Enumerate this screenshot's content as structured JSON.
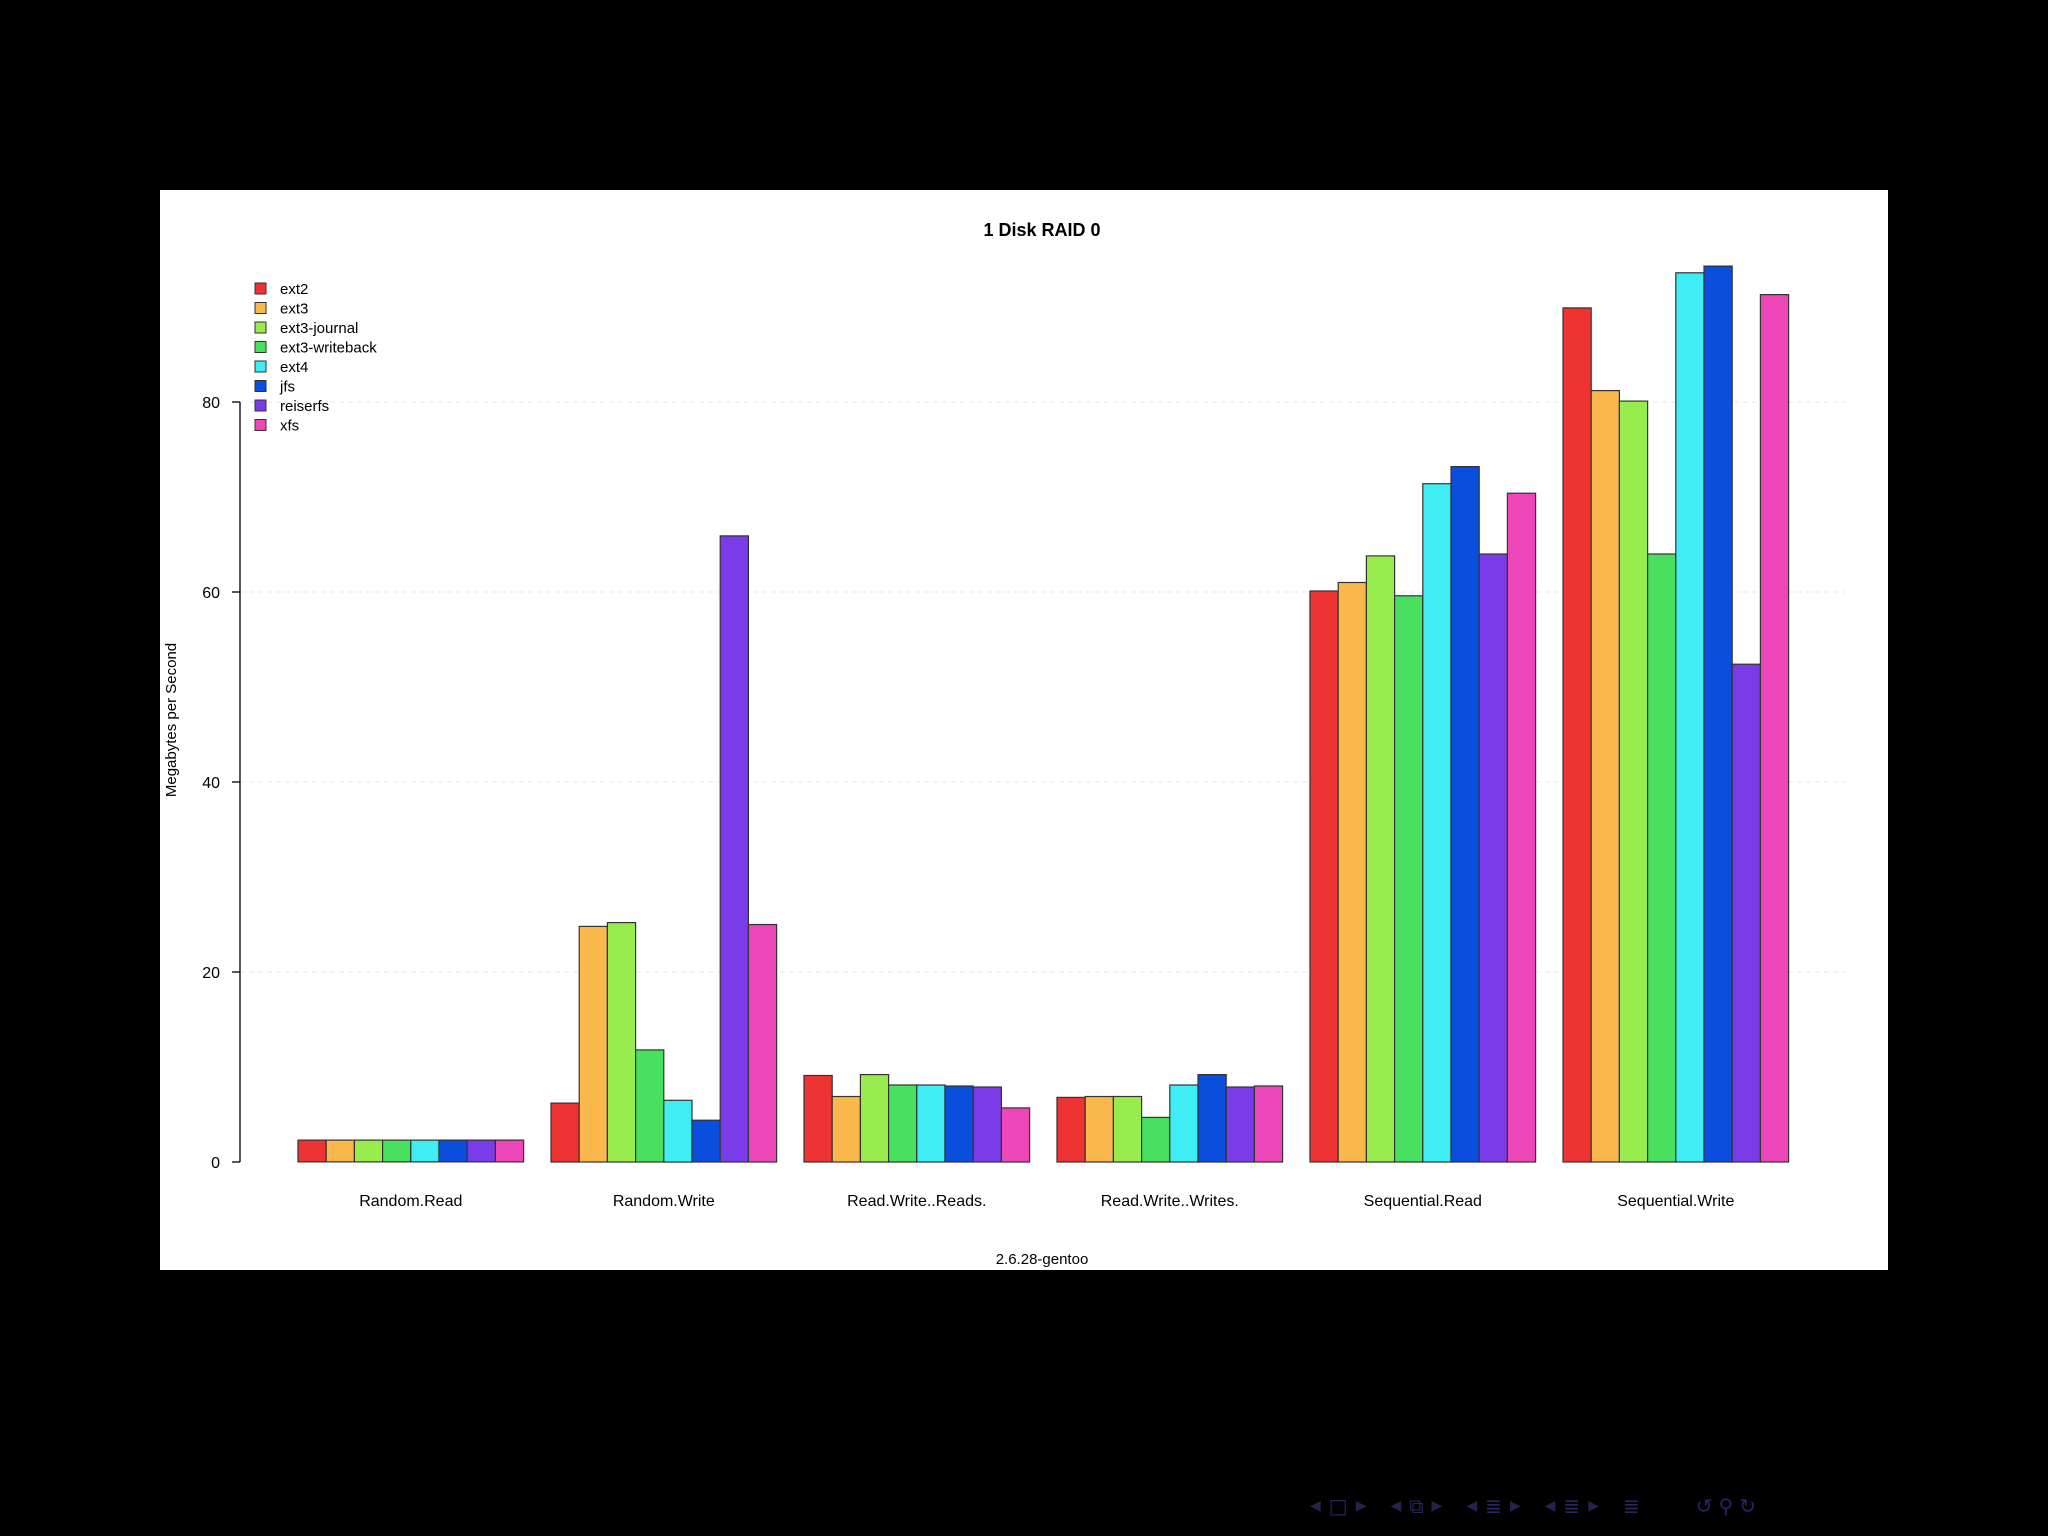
{
  "chart_data": {
    "type": "bar",
    "title": "1 Disk RAID 0",
    "xlabel": "2.6.28-gentoo",
    "ylabel": "Megabytes per Second",
    "ylim": [
      0,
      96
    ],
    "yticks": [
      "0",
      "20",
      "40",
      "60",
      "80"
    ],
    "grid": true,
    "legend_position": "top-left",
    "categories": [
      "Random.Read",
      "Random.Write",
      "Read.Write..Reads.",
      "Read.Write..Writes.",
      "Sequential.Read",
      "Sequential.Write"
    ],
    "series": [
      {
        "name": "ext2",
        "color": "#ee3333",
        "values": [
          2.3,
          6.2,
          9.1,
          6.8,
          60.1,
          89.9
        ]
      },
      {
        "name": "ext3",
        "color": "#fbb84d",
        "values": [
          2.3,
          24.8,
          6.9,
          6.9,
          61.0,
          81.2
        ]
      },
      {
        "name": "ext3-journal",
        "color": "#98ec4e",
        "values": [
          2.3,
          25.2,
          9.2,
          6.9,
          63.8,
          80.1
        ]
      },
      {
        "name": "ext3-writeback",
        "color": "#48e05e",
        "values": [
          2.3,
          11.8,
          8.1,
          4.7,
          59.6,
          64.0
        ]
      },
      {
        "name": "ext4",
        "color": "#3eeef4",
        "values": [
          2.3,
          6.5,
          8.1,
          8.1,
          71.4,
          93.6
        ]
      },
      {
        "name": "jfs",
        "color": "#0a4ede",
        "values": [
          2.3,
          4.4,
          8.0,
          9.2,
          73.2,
          94.3
        ]
      },
      {
        "name": "reiserfs",
        "color": "#7a3be8",
        "values": [
          2.3,
          65.9,
          7.9,
          7.9,
          64.0,
          52.4
        ]
      },
      {
        "name": "xfs",
        "color": "#ec46b8",
        "values": [
          2.3,
          25.0,
          5.7,
          8.0,
          70.4,
          91.3
        ]
      }
    ]
  },
  "nav": {
    "groups": [
      {
        "name": "frame",
        "icon": "□"
      },
      {
        "name": "subsection",
        "icon": "⧉"
      },
      {
        "name": "section",
        "icon": "≣"
      },
      {
        "name": "document",
        "icon": "≣"
      }
    ],
    "align_icon": "≣",
    "search_icons": [
      "↺",
      "⚲",
      "↻"
    ]
  }
}
